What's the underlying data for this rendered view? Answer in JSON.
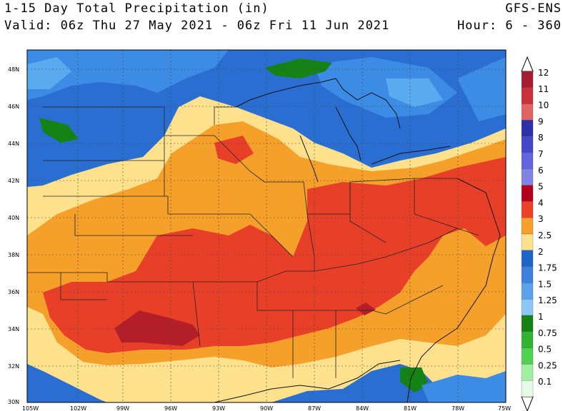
{
  "header": {
    "title": "1-15 Day Total Precipitation (in)",
    "model": "GFS-ENS",
    "valid": "Valid: 06z Thu 27 May 2021 - 06z Fri 11 Jun 2021",
    "hours": "Hour: 6 - 360"
  },
  "axes": {
    "lat_labels": [
      "48N",
      "46N",
      "44N",
      "42N",
      "40N",
      "38N",
      "36N",
      "34N",
      "32N",
      "30N"
    ],
    "lon_labels": [
      "105W",
      "102W",
      "99W",
      "96W",
      "93W",
      "90W",
      "87W",
      "84W",
      "81W",
      "78W",
      "75W"
    ]
  },
  "colorbar": {
    "levels": [
      "12",
      "11",
      "10",
      "9",
      "8",
      "7",
      "6",
      "5",
      "4",
      "3",
      "2.5",
      "2",
      "1.75",
      "1.5",
      "1.25",
      "1",
      "0.75",
      "0.5",
      "0.25",
      "0.1"
    ],
    "colors": [
      "#a51c30",
      "#c8323c",
      "#e06464",
      "#2f2fa8",
      "#4646c8",
      "#6464dc",
      "#8282e6",
      "#b4001e",
      "#ee4028",
      "#f5a02a",
      "#fde18c",
      "#1e64c8",
      "#3c82dc",
      "#5aa0ec",
      "#8cc8f5",
      "#148214",
      "#32b432",
      "#50d250",
      "#a0f0a0",
      "#e6fae6"
    ]
  },
  "field_colors": {
    "red": "#e84028",
    "darkred": "#b41e28",
    "orange": "#f5a02a",
    "yellow": "#fde18c",
    "blue_dark": "#2a6ed2",
    "blue_mid": "#3c8ce6",
    "blue_light": "#5aaaf0",
    "blue_pale": "#96d2f8",
    "green": "#148214"
  }
}
